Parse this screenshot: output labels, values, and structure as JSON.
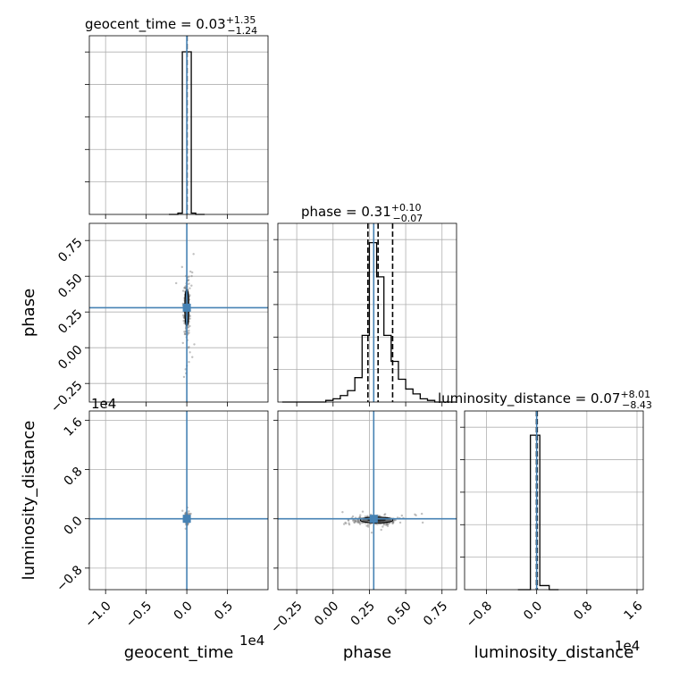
{
  "figure": {
    "truth_color": "#4682b4",
    "hist_color": "#000000",
    "sample_color": "#808080"
  },
  "chart_data": {
    "type": "corner",
    "parameters": [
      "geocent_time",
      "phase",
      "luminosity_distance"
    ],
    "truths": {
      "geocent_time": 0.0,
      "phase": 0.28,
      "luminosity_distance": 0.0
    },
    "axes": {
      "geocent_time": {
        "xlim": [
          -1.2,
          1.0
        ],
        "ticks": [
          -1.0,
          -0.5,
          0.0,
          0.5
        ],
        "tick_labels": [
          "−1.0",
          "−0.5",
          "0.0",
          "0.5"
        ],
        "multiplier": "1e4",
        "label": "geocent_time"
      },
      "phase": {
        "xlim": [
          -0.38,
          0.85
        ],
        "ticks": [
          -0.25,
          0.0,
          0.25,
          0.5,
          0.75
        ],
        "tick_labels": [
          "−0.25",
          "0.00",
          "0.25",
          "0.50",
          "0.75"
        ],
        "label": "phase"
      },
      "luminosity_distance": {
        "xlim": [
          -1.15,
          1.7
        ],
        "ticks": [
          -0.8,
          0.0,
          0.8,
          1.6
        ],
        "tick_labels": [
          "−0.8",
          "0.0",
          "0.8",
          "1.6"
        ],
        "multiplier": "1e4",
        "label": "luminosity_distance"
      }
    },
    "titles": [
      {
        "param": "geocent_time",
        "main": "geocent_time = 0.03",
        "upper": "+1.35",
        "lower": "−1.24"
      },
      {
        "param": "phase",
        "main": "phase = 0.31",
        "upper": "+0.10",
        "lower": "−0.07"
      },
      {
        "param": "luminosity_distance",
        "main": "luminosity_distance = 0.07",
        "upper": "+8.01",
        "lower": "−8.43"
      }
    ],
    "histograms": {
      "geocent_time": {
        "edges": [
          -0.22,
          -0.11,
          -0.055,
          0.055,
          0.11,
          0.22
        ],
        "counts": [
          0.0,
          0.008,
          1.0,
          0.008,
          0.0
        ],
        "quantiles": [
          0.003
        ]
      },
      "phase": {
        "edges": [
          -0.35,
          -0.3,
          -0.25,
          -0.2,
          -0.15,
          -0.1,
          -0.05,
          0.0,
          0.05,
          0.1,
          0.15,
          0.2,
          0.25,
          0.3,
          0.35,
          0.4,
          0.45,
          0.5,
          0.55,
          0.6,
          0.65,
          0.7,
          0.75,
          0.8,
          0.85
        ],
        "counts": [
          0.0,
          0.0,
          0.0,
          0.0,
          0.0,
          0.0,
          0.01,
          0.02,
          0.04,
          0.07,
          0.15,
          0.41,
          0.98,
          0.77,
          0.41,
          0.25,
          0.14,
          0.08,
          0.05,
          0.02,
          0.01,
          0.0,
          0.0,
          0.0
        ],
        "quantiles": [
          0.24,
          0.31,
          0.41
        ]
      },
      "luminosity_distance": {
        "edges": [
          -0.3,
          -0.1,
          0.05,
          0.2,
          0.35
        ],
        "counts": [
          0.0,
          0.95,
          0.025,
          0.0
        ],
        "quantiles": [
          -0.0036,
          0.0007,
          0.0087
        ]
      }
    },
    "ylims": {
      "row1": [
        -0.38,
        0.87
      ],
      "row2": [
        -1.15,
        1.75
      ]
    },
    "y_ticks": {
      "row1": {
        "values": [
          -0.25,
          0.0,
          0.25,
          0.5,
          0.75
        ],
        "labels": [
          "−0.25",
          "0.00",
          "0.25",
          "0.50",
          "0.75"
        ]
      },
      "row2": {
        "values": [
          -0.8,
          0.0,
          0.8,
          1.6
        ],
        "labels": [
          "−0.8",
          "0.0",
          "0.8",
          "1.6"
        ],
        "multiplier": "1e4"
      }
    },
    "y_labels": {
      "row1": "phase",
      "row2": "luminosity_distance"
    },
    "samples_2d": {
      "time_phase": {
        "center": [
          0.0,
          0.28
        ],
        "spread": [
          0.015,
          0.08
        ]
      },
      "time_distance": {
        "center": [
          0.0,
          0.0
        ],
        "spread": [
          0.012,
          0.035
        ]
      },
      "phase_distance": {
        "center": [
          0.3,
          -0.02
        ],
        "spread": [
          0.07,
          0.03
        ]
      }
    }
  }
}
